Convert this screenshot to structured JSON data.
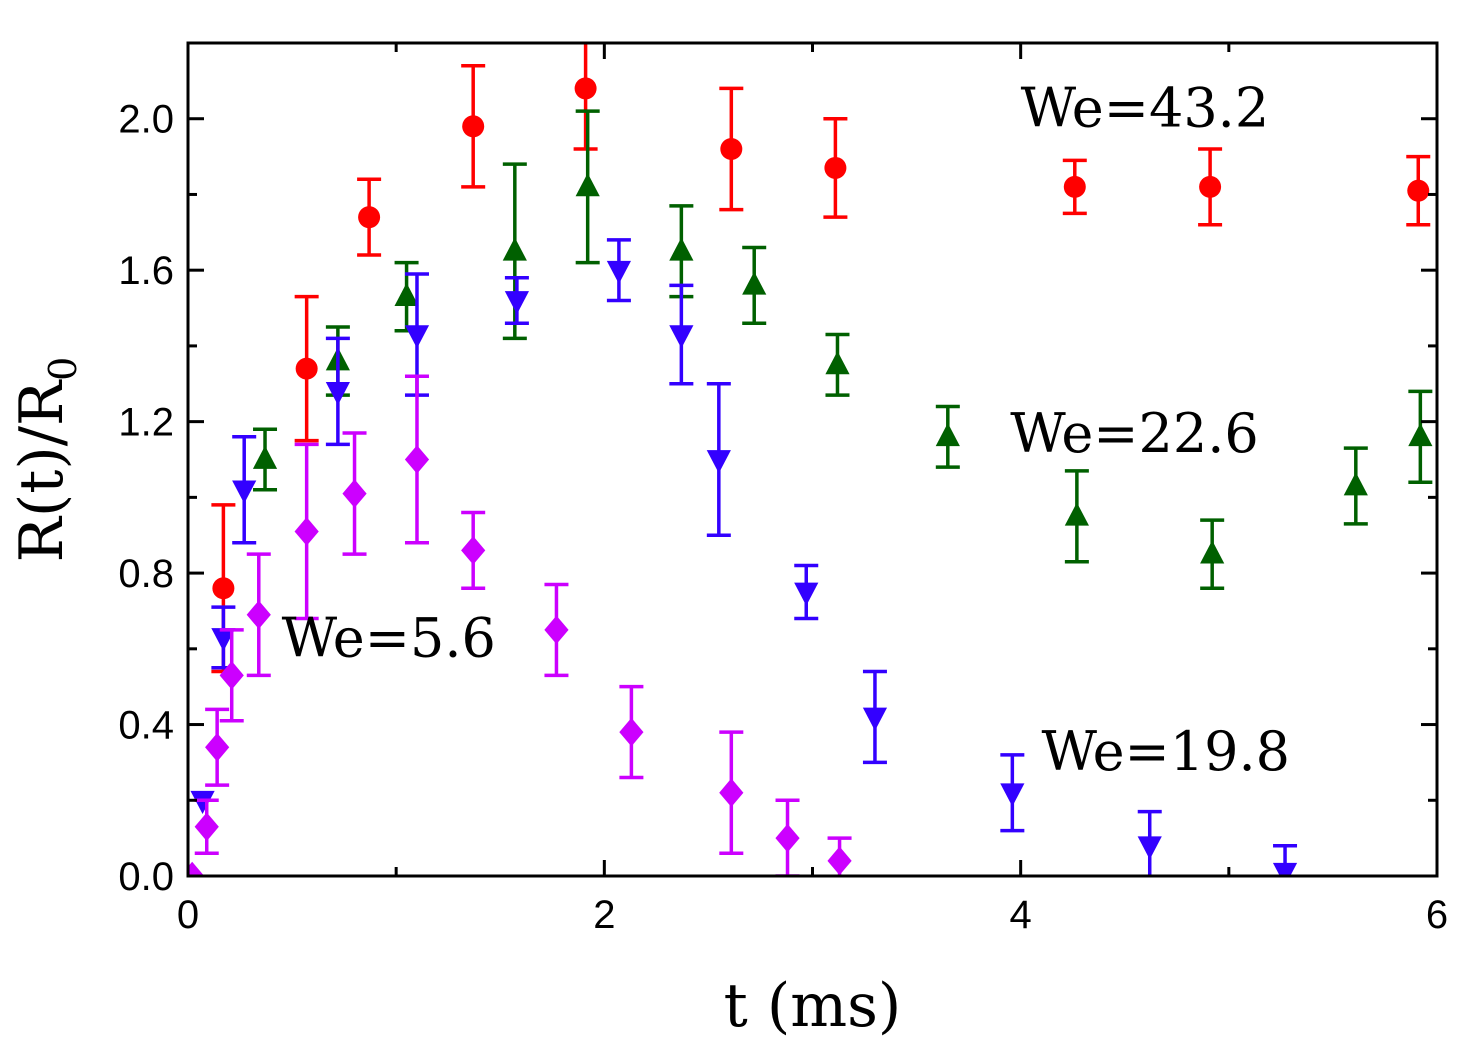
{
  "chart_data": {
    "type": "scatter",
    "title": "",
    "xlabel": "t (ms)",
    "ylabel_main": "R(t)/R",
    "ylabel_sub": "0",
    "xlim": [
      0,
      6
    ],
    "ylim": [
      0,
      2.2
    ],
    "x_ticks": [
      0,
      2,
      4,
      6
    ],
    "x_tick_labels": [
      "0",
      "2",
      "4",
      "6"
    ],
    "x_minor_ticks": [
      1,
      3,
      5
    ],
    "y_ticks": [
      0.0,
      0.4,
      0.8,
      1.2,
      1.6,
      2.0
    ],
    "y_tick_labels": [
      "0.0",
      "0.4",
      "0.8",
      "1.2",
      "1.6",
      "2.0"
    ],
    "y_minor_ticks": [
      0.2,
      0.6,
      1.0,
      1.4,
      1.8
    ],
    "grid": false,
    "legend": "none",
    "series": [
      {
        "name": "We=43.2",
        "marker": "circle",
        "color": "#ff0000",
        "points": [
          {
            "x": 0.17,
            "y": 0.76,
            "err": 0.22
          },
          {
            "x": 0.57,
            "y": 1.34,
            "err": 0.19
          },
          {
            "x": 0.87,
            "y": 1.74,
            "err": 0.1
          },
          {
            "x": 1.37,
            "y": 1.98,
            "err": 0.16
          },
          {
            "x": 1.91,
            "y": 2.08,
            "err": 0.16
          },
          {
            "x": 2.61,
            "y": 1.92,
            "err": 0.16
          },
          {
            "x": 3.11,
            "y": 1.87,
            "err": 0.13
          },
          {
            "x": 4.26,
            "y": 1.82,
            "err": 0.07
          },
          {
            "x": 4.91,
            "y": 1.82,
            "err": 0.1
          },
          {
            "x": 5.91,
            "y": 1.81,
            "err": 0.09
          }
        ]
      },
      {
        "name": "We=22.6",
        "marker": "triangle-up",
        "color": "#006000",
        "points": [
          {
            "x": 0.37,
            "y": 1.1,
            "err": 0.08
          },
          {
            "x": 0.72,
            "y": 1.36,
            "err": 0.09
          },
          {
            "x": 1.05,
            "y": 1.53,
            "err": 0.09
          },
          {
            "x": 1.57,
            "y": 1.65,
            "err": 0.23
          },
          {
            "x": 1.92,
            "y": 1.82,
            "err": 0.2
          },
          {
            "x": 2.37,
            "y": 1.65,
            "err": 0.12
          },
          {
            "x": 2.72,
            "y": 1.56,
            "err": 0.1
          },
          {
            "x": 3.12,
            "y": 1.35,
            "err": 0.08
          },
          {
            "x": 3.65,
            "y": 1.16,
            "err": 0.08
          },
          {
            "x": 4.27,
            "y": 0.95,
            "err": 0.12
          },
          {
            "x": 4.92,
            "y": 0.85,
            "err": 0.09
          },
          {
            "x": 5.61,
            "y": 1.03,
            "err": 0.1
          },
          {
            "x": 5.92,
            "y": 1.16,
            "err": 0.12
          }
        ]
      },
      {
        "name": "We=19.8",
        "marker": "triangle-down",
        "color": "#3300ff",
        "points": [
          {
            "x": 0.07,
            "y": 0.2,
            "err": 0.0
          },
          {
            "x": 0.17,
            "y": 0.63,
            "err": 0.08
          },
          {
            "x": 0.27,
            "y": 1.02,
            "err": 0.14
          },
          {
            "x": 0.72,
            "y": 1.28,
            "err": 0.14
          },
          {
            "x": 1.1,
            "y": 1.43,
            "err": 0.16
          },
          {
            "x": 1.58,
            "y": 1.52,
            "err": 0.06
          },
          {
            "x": 2.07,
            "y": 1.6,
            "err": 0.08
          },
          {
            "x": 2.37,
            "y": 1.43,
            "err": 0.13
          },
          {
            "x": 2.55,
            "y": 1.1,
            "err": 0.2
          },
          {
            "x": 2.97,
            "y": 0.75,
            "err": 0.07
          },
          {
            "x": 3.3,
            "y": 0.42,
            "err": 0.12
          },
          {
            "x": 3.96,
            "y": 0.22,
            "err": 0.1
          },
          {
            "x": 4.62,
            "y": 0.08,
            "err": 0.09
          },
          {
            "x": 5.27,
            "y": 0.01,
            "err": 0.07
          }
        ]
      },
      {
        "name": "We=5.6",
        "marker": "diamond",
        "color": "#cc00ff",
        "points": [
          {
            "x": 0.02,
            "y": 0.0,
            "err": 0.0
          },
          {
            "x": 0.09,
            "y": 0.13,
            "err": 0.07
          },
          {
            "x": 0.14,
            "y": 0.34,
            "err": 0.1
          },
          {
            "x": 0.21,
            "y": 0.53,
            "err": 0.12
          },
          {
            "x": 0.34,
            "y": 0.69,
            "err": 0.16
          },
          {
            "x": 0.57,
            "y": 0.91,
            "err": 0.23
          },
          {
            "x": 0.8,
            "y": 1.01,
            "err": 0.16
          },
          {
            "x": 1.1,
            "y": 1.1,
            "err": 0.22
          },
          {
            "x": 1.37,
            "y": 0.86,
            "err": 0.1
          },
          {
            "x": 1.77,
            "y": 0.65,
            "err": 0.12
          },
          {
            "x": 2.13,
            "y": 0.38,
            "err": 0.12
          },
          {
            "x": 2.61,
            "y": 0.22,
            "err": 0.16
          },
          {
            "x": 2.88,
            "y": 0.1,
            "err": 0.1
          },
          {
            "x": 3.13,
            "y": 0.04,
            "err": 0.06
          }
        ]
      }
    ],
    "annotations": [
      {
        "text": "We=43.2",
        "x": 4.0,
        "y": 1.98
      },
      {
        "text": "We=22.6",
        "x": 3.95,
        "y": 1.12
      },
      {
        "text": "We=19.8",
        "x": 4.1,
        "y": 0.28
      },
      {
        "text": "We=5.6",
        "x": 0.45,
        "y": 0.58
      }
    ]
  }
}
